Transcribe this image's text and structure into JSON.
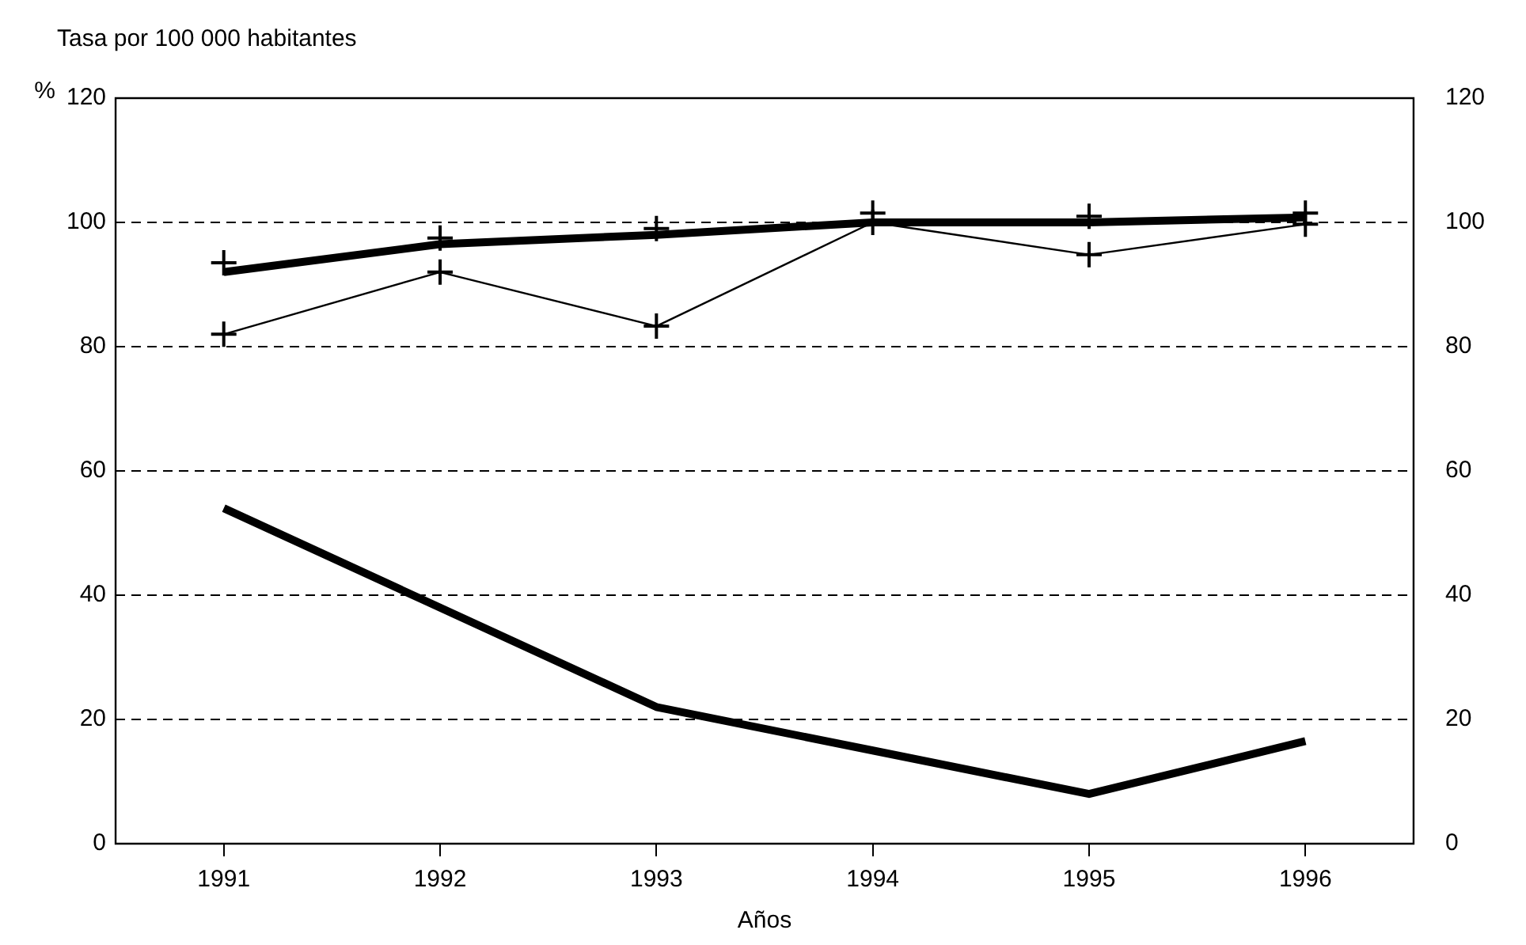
{
  "chart_data": {
    "type": "line",
    "title": "Tasa por 100 000 habitantes",
    "ylabel": "%",
    "xlabel": "Años",
    "categories": [
      "1991",
      "1992",
      "1993",
      "1994",
      "1995",
      "1996"
    ],
    "series": [
      {
        "type": "line",
        "color": "#000000",
        "marker": "none",
        "values": [
          92,
          96.5,
          98,
          100,
          100,
          100.8
        ]
      },
      {
        "type": "scatter",
        "color": "#000000",
        "marker": "cross",
        "values": [
          93.5,
          97.5,
          99,
          101.5,
          101,
          101.5
        ]
      },
      {
        "type": "line",
        "color": "#000000",
        "marker": "cross",
        "values": [
          82,
          92,
          83.3,
          100,
          94.8,
          99.7
        ]
      },
      {
        "type": "line",
        "color": "#000000",
        "marker": "none",
        "values": [
          54,
          38,
          22,
          15,
          8,
          16.5
        ]
      }
    ],
    "ylim": [
      0,
      120
    ],
    "yticks": [
      0,
      20,
      40,
      60,
      80,
      100,
      120
    ],
    "y2lim": [
      0,
      120
    ],
    "y2ticks": [
      0,
      20,
      40,
      60,
      80,
      100,
      120
    ],
    "grid": "y",
    "legend": false
  }
}
